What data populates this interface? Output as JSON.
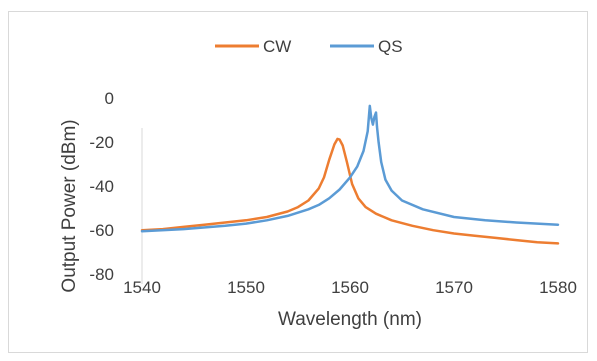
{
  "chart_data": {
    "type": "line",
    "xlabel": "Wavelength (nm)",
    "ylabel": "Output Power (dBm)",
    "xlim": [
      1540,
      1580
    ],
    "ylim": [
      -80,
      0
    ],
    "xticks": [
      "1540",
      "1550",
      "1560",
      "1570",
      "1580"
    ],
    "yticks": [
      "0",
      "-20",
      "-40",
      "-60",
      "-80"
    ],
    "grid": false,
    "legend_position": "top",
    "series": [
      {
        "name": "CW",
        "color": "#ed7d31",
        "x": [
          1540,
          1542,
          1544,
          1546,
          1548,
          1550,
          1552,
          1554,
          1555,
          1556,
          1557,
          1557.5,
          1558,
          1558.5,
          1558.8,
          1559,
          1559.3,
          1559.7,
          1560.2,
          1560.8,
          1561.5,
          1562.5,
          1564,
          1566,
          1568,
          1570,
          1572,
          1574,
          1576,
          1578,
          1580
        ],
        "y": [
          -61,
          -60.5,
          -59.5,
          -58.5,
          -57.5,
          -56.5,
          -55,
          -52.5,
          -50.5,
          -47.5,
          -42,
          -37,
          -29,
          -22,
          -19.5,
          -19.8,
          -22.5,
          -30,
          -40,
          -46.5,
          -50.5,
          -53.5,
          -56.5,
          -59,
          -61,
          -62.5,
          -63.5,
          -64.5,
          -65.5,
          -66.5,
          -67
        ]
      },
      {
        "name": "QS",
        "color": "#5b9bd5",
        "x": [
          1540,
          1544,
          1548,
          1550,
          1552,
          1554,
          1556,
          1557,
          1558,
          1559,
          1560,
          1560.7,
          1561.3,
          1561.7,
          1561.9,
          1562.05,
          1562.2,
          1562.35,
          1562.5,
          1562.6,
          1562.75,
          1563,
          1563.4,
          1564,
          1565,
          1567,
          1570,
          1573,
          1576,
          1580
        ],
        "y": [
          -61.5,
          -60.5,
          -59,
          -58,
          -56.5,
          -54.5,
          -51.5,
          -49.5,
          -46.5,
          -42.5,
          -37,
          -32,
          -25,
          -16,
          -4.5,
          -10,
          -13,
          -9.5,
          -7.5,
          -14,
          -21,
          -30,
          -38,
          -43,
          -47.5,
          -51.5,
          -55,
          -56.5,
          -57.5,
          -58.5
        ]
      }
    ]
  }
}
